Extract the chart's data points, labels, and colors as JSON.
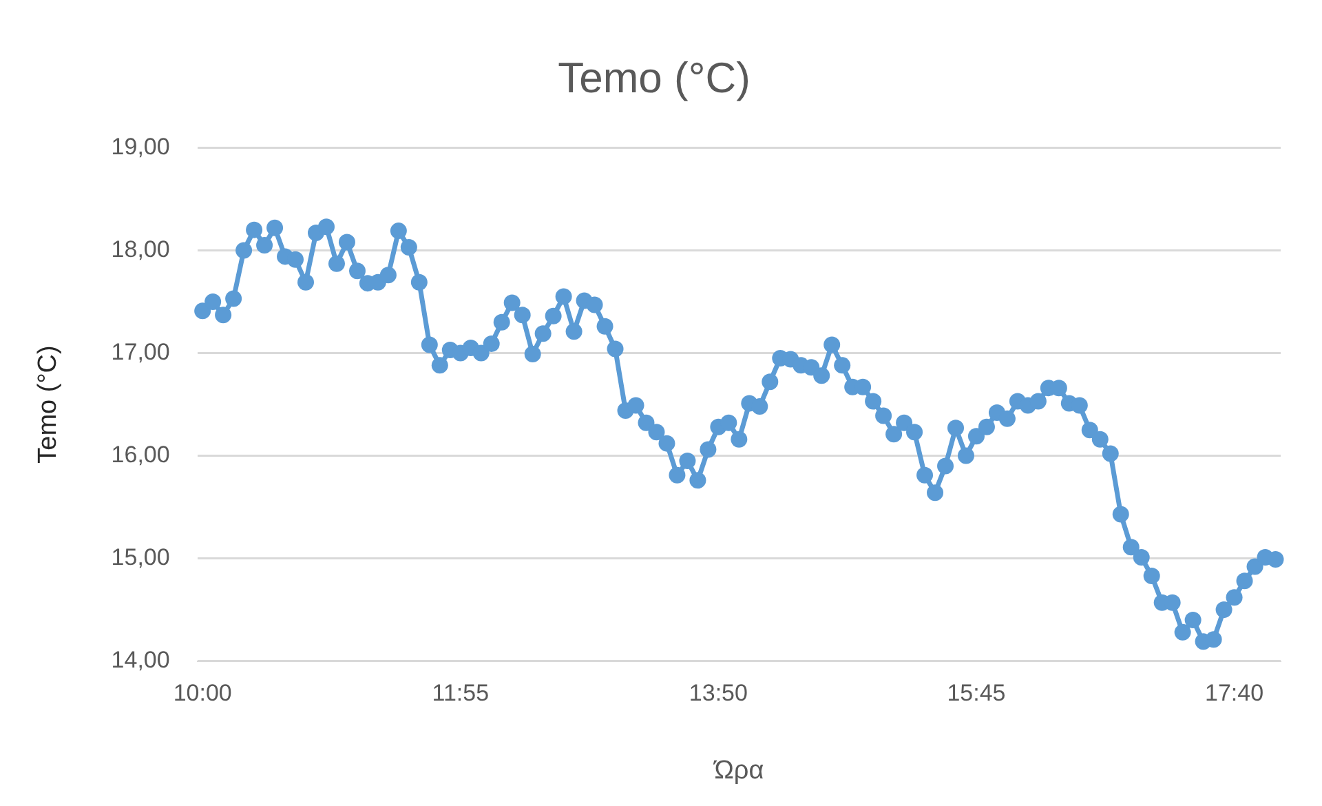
{
  "chart_data": {
    "type": "line",
    "title": "Temo (°C)",
    "xlabel": "Ώρα",
    "ylabel": "Temo (°C)",
    "categories": [
      "10:00",
      null,
      null,
      null,
      null,
      null,
      null,
      null,
      null,
      null,
      null,
      null,
      null,
      null,
      null,
      null,
      null,
      null,
      null,
      null,
      null,
      null,
      null,
      null,
      null,
      "11:55",
      null,
      null,
      null,
      null,
      null,
      null,
      null,
      null,
      null,
      null,
      null,
      null,
      null,
      null,
      null,
      null,
      null,
      null,
      null,
      null,
      null,
      null,
      null,
      null,
      "13:50",
      null,
      null,
      null,
      null,
      null,
      null,
      null,
      null,
      null,
      null,
      null,
      null,
      null,
      null,
      null,
      null,
      null,
      null,
      null,
      null,
      null,
      null,
      null,
      null,
      "15:45",
      null,
      null,
      null,
      null,
      null,
      null,
      null,
      null,
      null,
      null,
      null,
      null,
      null,
      null,
      null,
      null,
      null,
      null,
      null,
      null,
      null,
      null,
      null,
      null,
      "17:40",
      null,
      null,
      null,
      null
    ],
    "series": [
      {
        "color": "#5b9bd5",
        "values": [
          17.41,
          17.5,
          17.37,
          17.53,
          18.0,
          18.2,
          18.05,
          18.22,
          17.94,
          17.91,
          17.69,
          18.17,
          18.23,
          17.87,
          18.08,
          17.8,
          17.68,
          17.69,
          17.76,
          18.19,
          18.03,
          17.69,
          17.08,
          16.88,
          17.03,
          17.0,
          17.05,
          17.0,
          17.09,
          17.3,
          17.49,
          17.37,
          16.99,
          17.19,
          17.36,
          17.55,
          17.21,
          17.51,
          17.47,
          17.26,
          17.04,
          16.44,
          16.49,
          16.32,
          16.23,
          16.12,
          15.81,
          15.95,
          15.76,
          16.06,
          16.28,
          16.32,
          16.16,
          16.51,
          16.48,
          16.72,
          16.95,
          16.94,
          16.88,
          16.86,
          16.78,
          17.08,
          16.88,
          16.67,
          16.67,
          16.53,
          16.39,
          16.21,
          16.32,
          16.23,
          15.81,
          15.64,
          15.9,
          16.27,
          16.0,
          16.19,
          16.28,
          16.42,
          16.36,
          16.53,
          16.49,
          16.53,
          16.66,
          16.66,
          16.51,
          16.49,
          16.25,
          16.16,
          16.02,
          15.43,
          15.11,
          15.01,
          14.83,
          14.57,
          14.57,
          14.28,
          14.4,
          14.19,
          14.21,
          14.5,
          14.62,
          14.78,
          14.92,
          15.01,
          14.99
        ]
      }
    ],
    "ylim": [
      14,
      19
    ],
    "yticks": [
      {
        "value": 14,
        "label": "14,00"
      },
      {
        "value": 15,
        "label": "15,00"
      },
      {
        "value": 16,
        "label": "16,00"
      },
      {
        "value": 17,
        "label": "17,00"
      },
      {
        "value": 18,
        "label": "18,00"
      },
      {
        "value": 19,
        "label": "19,00"
      }
    ],
    "grid": "y",
    "legend": false,
    "marker": "circle",
    "line_style": "solid"
  }
}
